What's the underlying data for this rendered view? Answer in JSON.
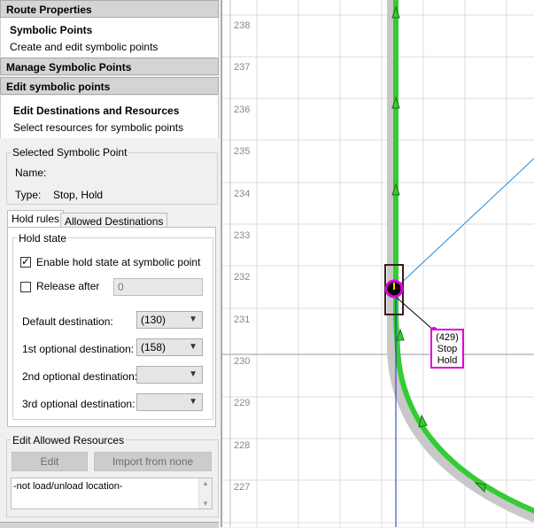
{
  "route_properties": {
    "label": "Route Properties"
  },
  "symbolic_points": {
    "title": "Symbolic Points",
    "subtitle": "Create and edit symbolic points"
  },
  "manage": {
    "label": "Manage Symbolic Points"
  },
  "edit_sp": {
    "label": "Edit symbolic points"
  },
  "edit_dest": {
    "title": "Edit Destinations and Resources",
    "subtitle": "Select resources for symbolic points"
  },
  "selected_point": {
    "group_title": "Selected Symbolic Point",
    "name_label": "Name:",
    "name_value": "",
    "type_label": "Type:",
    "type_value": "Stop, Hold"
  },
  "tabs": [
    {
      "label": "Hold rules",
      "active": true
    },
    {
      "label": "Allowed Destinations",
      "active": false
    }
  ],
  "hold_state": {
    "group_title": "Hold state",
    "enable_label": "Enable hold state at symbolic point",
    "enable_checked": true,
    "release_label": "Release after",
    "release_checked": false,
    "release_value": "0",
    "default_label": "Default destination:",
    "default_value": "(130)",
    "opt1_label": "1st optional destination:",
    "opt1_value": "(158)",
    "opt2_label": "2nd optional destination:",
    "opt2_value": "",
    "opt3_label": "3rd optional destination:",
    "opt3_value": ""
  },
  "allowed_resources": {
    "group_title": "Edit Allowed Resources",
    "edit_button": "Edit",
    "import_button": "Import from none",
    "list_items": [
      "-not load/unload location-"
    ]
  },
  "map": {
    "y_ticks": [
      "238",
      "237",
      "236",
      "235",
      "234",
      "233",
      "232",
      "231",
      "230",
      "229",
      "228",
      "227"
    ],
    "stop_label": [
      "(429)",
      "Stop",
      "Hold"
    ],
    "colors": {
      "route": "#33cc33",
      "route_shadow": "#c8c8c8",
      "selection": "#e000e0",
      "link": "#1e88e5",
      "grid": "#dcdcdc"
    }
  }
}
